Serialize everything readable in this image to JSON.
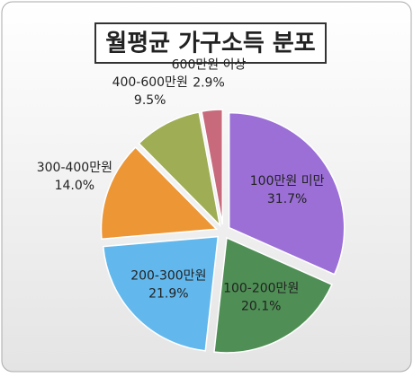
{
  "chart_data": {
    "type": "pie",
    "title": "월평균 가구소득 분포",
    "categories": [
      "100만원 미만",
      "100-200만원",
      "200-300만원",
      "300-400만원",
      "400-600만원",
      "600만원 이상"
    ],
    "values": [
      31.7,
      20.1,
      21.9,
      14.0,
      9.5,
      2.9
    ],
    "value_labels": [
      "31.7%",
      "20.1%",
      "21.9%",
      "14.0%",
      "9.5%",
      "2.9%"
    ],
    "colors": [
      "#9b6fd6",
      "#4f8f55",
      "#62b8ec",
      "#ec9636",
      "#9fad55",
      "#c86a7c"
    ]
  }
}
